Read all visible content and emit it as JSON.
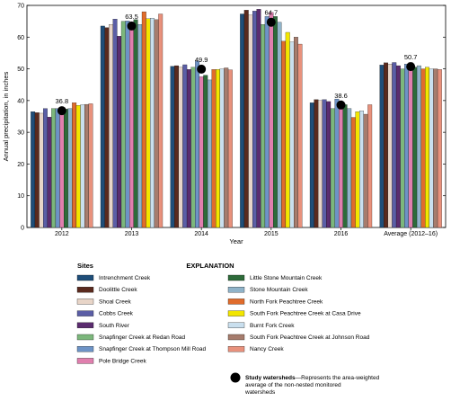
{
  "chart_data": {
    "type": "bar",
    "title": "",
    "xlabel": "Year",
    "ylabel": "Annual precipitation, in inches",
    "ylim": [
      0,
      70
    ],
    "yticks": [
      0,
      10,
      20,
      30,
      40,
      50,
      60,
      70
    ],
    "grid": false,
    "categories": [
      "2012",
      "2013",
      "2014",
      "2015",
      "2016",
      "Average (2012–16)"
    ],
    "series": [
      {
        "name": "Intrenchment Creek",
        "color": "#1f4e79",
        "values": [
          36.5,
          63.5,
          50.8,
          67.3,
          39.3,
          51.2
        ]
      },
      {
        "name": "Doolittle Creek",
        "color": "#5a2a1e",
        "values": [
          36.2,
          63.0,
          51.0,
          68.5,
          40.3,
          51.9
        ]
      },
      {
        "name": "Shoal Creek",
        "color": "#e8d5c8",
        "values": [
          36.0,
          64.0,
          50.5,
          67.0,
          40.0,
          51.5
        ]
      },
      {
        "name": "Cobbs Creek",
        "color": "#5b5ea6",
        "values": [
          37.5,
          65.7,
          51.3,
          68.2,
          40.3,
          52.0
        ]
      },
      {
        "name": "South River",
        "color": "#5b2c6f",
        "values": [
          34.8,
          60.3,
          49.8,
          68.8,
          39.7,
          51.0
        ]
      },
      {
        "name": "Snapfinger Creek at Redan Road",
        "color": "#7cb77c",
        "values": [
          37.5,
          65.0,
          50.5,
          64.0,
          37.5,
          50.0
        ]
      },
      {
        "name": "Snapfinger Creek at Thompson Mill Road",
        "color": "#6d93c6",
        "values": [
          37.5,
          65.1,
          52.5,
          66.5,
          40.5,
          51.5
        ]
      },
      {
        "name": "Pole Bridge Creek",
        "color": "#e07fae",
        "values": [
          37.0,
          62.5,
          47.5,
          67.8,
          38.3,
          52.0
        ]
      },
      {
        "name": "Little Stone Mountain Creek",
        "color": "#2e6b3a",
        "values": [
          37.3,
          65.5,
          48.0,
          66.5,
          38.7,
          50.5
        ]
      },
      {
        "name": "Stone Mountain Creek",
        "color": "#8fb3c9",
        "values": [
          37.5,
          64.0,
          46.5,
          64.7,
          37.5,
          51.0
        ]
      },
      {
        "name": "North Fork Peachtree Creek",
        "color": "#e06c2c",
        "values": [
          39.3,
          68.0,
          49.8,
          58.7,
          34.7,
          50.0
        ]
      },
      {
        "name": "South Fork Peachtree Creek at Casa Drive",
        "color": "#f2e600",
        "values": [
          38.5,
          65.8,
          49.8,
          61.5,
          36.5,
          50.5
        ]
      },
      {
        "name": "Burnt Fork Creek",
        "color": "#c9dfee",
        "values": [
          38.7,
          66.0,
          50.0,
          58.5,
          36.8,
          50.0
        ]
      },
      {
        "name": "South Fork Peachtree Creek at Johnson Road",
        "color": "#a67c6d",
        "values": [
          38.8,
          65.5,
          50.3,
          60.0,
          35.7,
          50.0
        ]
      },
      {
        "name": "Nancy Creek",
        "color": "#e8917c",
        "values": [
          39.0,
          67.3,
          49.7,
          57.8,
          38.7,
          49.8
        ]
      }
    ],
    "study_watersheds": {
      "values": [
        36.8,
        63.5,
        49.9,
        64.7,
        38.6,
        50.7
      ],
      "labels": [
        "36.8",
        "63.5",
        "49.9",
        "64.7",
        "38.6",
        "50.7"
      ]
    }
  },
  "legend": {
    "explanation": "EXPLANATION",
    "sites_header": "Sites",
    "study_label": "Study watersheds",
    "study_desc_1": "—Represents the area-weighted",
    "study_desc_2": "average of the non-nested monitored",
    "study_desc_3": "watersheds"
  }
}
